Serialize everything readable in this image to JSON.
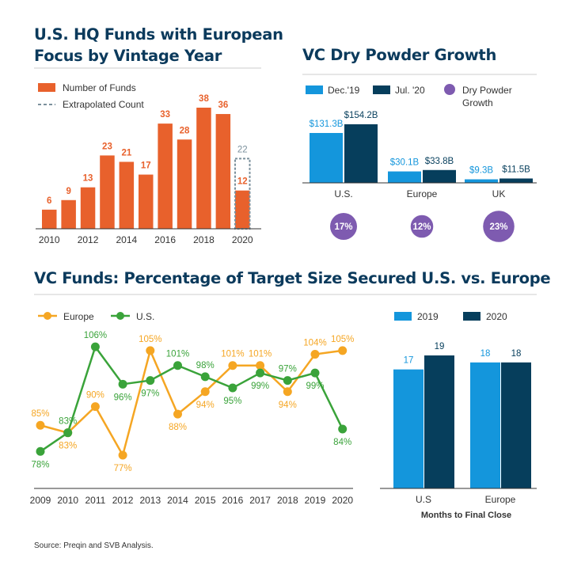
{
  "colors": {
    "title": "#0b3a5c",
    "orange": "#e8612c",
    "dashed": "#7b909c",
    "light_blue": "#1496dc",
    "dark_blue": "#063e5c",
    "purple": "#7e5bb0",
    "europe_line": "#f5a623",
    "us_line": "#3aa33a",
    "axis": "#333333"
  },
  "source": "Source: Preqin and SVB Analysis.",
  "chart_data": [
    {
      "type": "bar",
      "title": "U.S. HQ Funds with European Focus by Vintage Year",
      "title_lines": [
        "U.S. HQ Funds with European",
        "Focus by Vintage Year"
      ],
      "legend": [
        "Number of Funds",
        "Extrapolated Count"
      ],
      "categories": [
        2010,
        2011,
        2012,
        2013,
        2014,
        2015,
        2016,
        2017,
        2018,
        2019,
        2020
      ],
      "x_tick_labels": [
        "2010",
        "2012",
        "2014",
        "2016",
        "2018",
        "2020"
      ],
      "values": [
        6,
        9,
        13,
        23,
        21,
        17,
        33,
        28,
        38,
        36,
        12
      ],
      "extrapolated": {
        "category": 2020,
        "value": 22
      },
      "ylim": [
        0,
        40
      ]
    },
    {
      "type": "bar",
      "title": "VC Dry Powder Growth",
      "legend": [
        "Dec.'19",
        "Jul. '20",
        "Dry Powder Growth"
      ],
      "categories": [
        "U.S.",
        "Europe",
        "UK"
      ],
      "series": [
        {
          "name": "Dec.'19",
          "values": [
            131.3,
            30.1,
            9.3
          ],
          "labels": [
            "$131.3B",
            "$30.1B",
            "$9.3B"
          ]
        },
        {
          "name": "Jul. '20",
          "values": [
            154.2,
            33.8,
            11.5
          ],
          "labels": [
            "$154.2B",
            "$33.8B",
            "$11.5B"
          ]
        }
      ],
      "growth": [
        17,
        12,
        23
      ],
      "growth_labels": [
        "17%",
        "12%",
        "23%"
      ],
      "ylim": [
        0,
        200
      ]
    },
    {
      "type": "line",
      "title": "VC Funds: Percentage of Target Size Secured U.S. vs. Europe",
      "x": [
        2009,
        2010,
        2011,
        2012,
        2013,
        2014,
        2015,
        2016,
        2017,
        2018,
        2019,
        2020
      ],
      "x_tick_labels": [
        "2009",
        "2010",
        "2011",
        "2012",
        "2013",
        "2014",
        "2015",
        "2016",
        "2017",
        "2018",
        "2019",
        "2020"
      ],
      "series": [
        {
          "name": "Europe",
          "values": [
            85,
            83,
            90,
            77,
            105,
            88,
            94,
            101,
            101,
            94,
            104,
            105
          ]
        },
        {
          "name": "U.S.",
          "values": [
            78,
            83,
            106,
            96,
            97,
            101,
            98,
            95,
            99,
            97,
            99,
            84
          ]
        }
      ],
      "ylim": [
        75,
        108
      ]
    },
    {
      "type": "bar",
      "categories": [
        "U.S",
        "Europe"
      ],
      "xlabel": "Months to Final Close",
      "series": [
        {
          "name": "2019",
          "values": [
            17,
            18
          ]
        },
        {
          "name": "2020",
          "values": [
            19,
            18
          ]
        }
      ],
      "ylim": [
        0,
        20
      ]
    }
  ]
}
